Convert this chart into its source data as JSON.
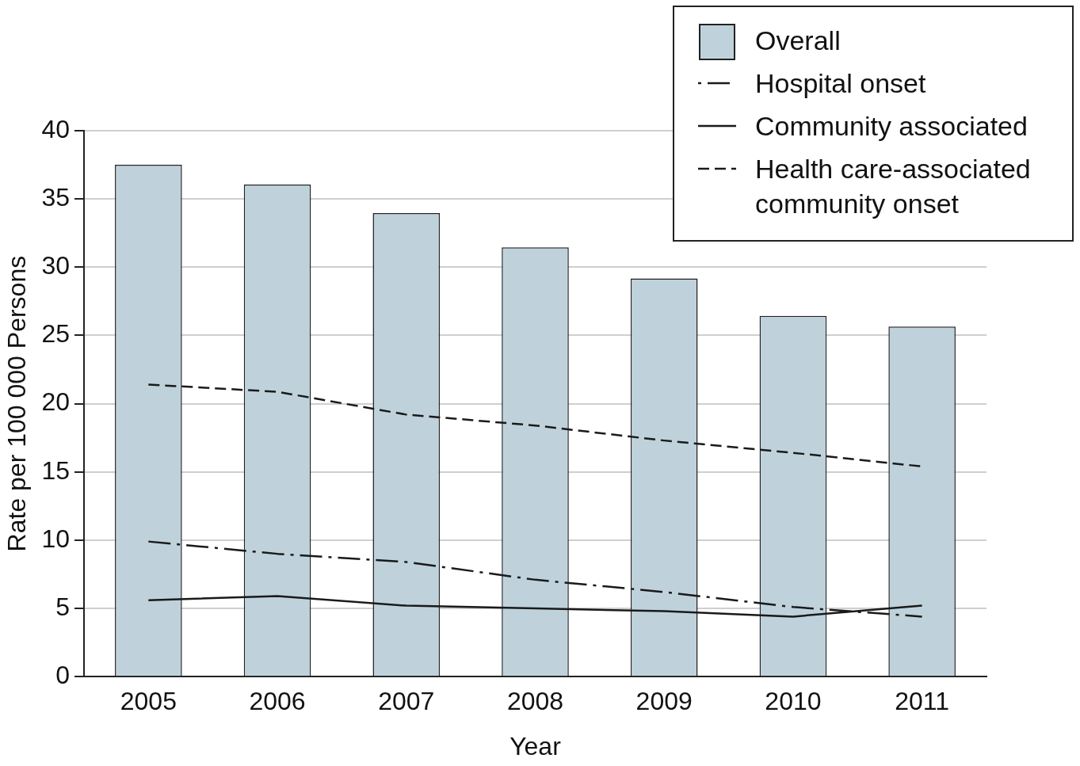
{
  "chart_data": {
    "type": "bar",
    "xlabel": "Year",
    "ylabel": "Rate per 100 000 Persons",
    "categories": [
      "2005",
      "2006",
      "2007",
      "2008",
      "2009",
      "2010",
      "2011"
    ],
    "series": [
      {
        "name": "Overall",
        "color": "#bfd2dc",
        "values": [
          37.5,
          36.05,
          33.96,
          31.45,
          29.18,
          26.43,
          25.65
        ]
      },
      {
        "name": "Hospital onset",
        "type": "line",
        "color": "#1a1a1a",
        "line_style": "dashdot",
        "values": [
          9.9,
          9.0,
          8.4,
          7.1,
          6.2,
          5.1,
          4.4
        ]
      },
      {
        "name": "Community associated",
        "type": "line",
        "color": "#1a1a1a",
        "line_style": "solid",
        "values": [
          5.6,
          5.9,
          5.2,
          5.0,
          4.8,
          4.4,
          5.2
        ]
      },
      {
        "name": "Health care-associated community onset",
        "type": "line",
        "color": "#1a1a1a",
        "line_style": "dashed",
        "values": [
          21.4,
          20.87,
          19.2,
          18.4,
          17.3,
          16.4,
          15.4
        ]
      }
    ],
    "ylim": [
      0,
      40
    ],
    "yticks": [
      0,
      5,
      10,
      15,
      20,
      25,
      30,
      35,
      40
    ],
    "grid": "y",
    "legend": "top right",
    "marker": "none"
  }
}
